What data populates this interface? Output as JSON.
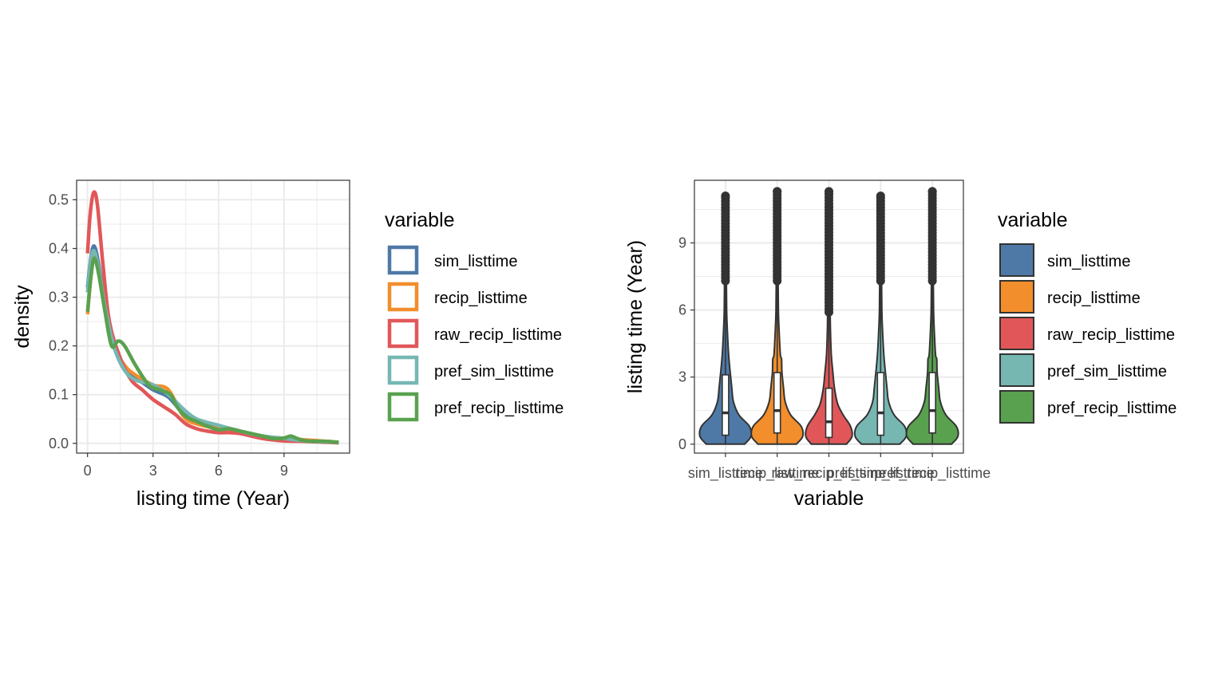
{
  "colors": {
    "sim_listtime": "#4e79a7",
    "recip_listtime": "#f28e2b",
    "raw_recip_listtime": "#e15759",
    "pref_sim_listtime": "#76b7b2",
    "pref_recip_listtime": "#59a14f",
    "outline": "#333333",
    "grid": "#ebebeb",
    "panel_border": "#333333"
  },
  "chart_data": [
    {
      "type": "line",
      "subtype": "density",
      "xlabel": "listing time (Year)",
      "ylabel": "density",
      "xlim": [
        -0.5,
        12
      ],
      "ylim": [
        -0.02,
        0.54
      ],
      "x_ticks": [
        0,
        3,
        6,
        9
      ],
      "x_tick_labels": [
        "0",
        "3",
        "6",
        "9"
      ],
      "y_ticks": [
        0.0,
        0.1,
        0.2,
        0.3,
        0.4,
        0.5
      ],
      "y_tick_labels": [
        "0.0",
        "0.1",
        "0.2",
        "0.3",
        "0.4",
        "0.5"
      ],
      "grid": true,
      "legend": {
        "title": "variable",
        "position": "right",
        "entries": [
          "sim_listtime",
          "recip_listtime",
          "raw_recip_listtime",
          "pref_sim_listtime",
          "pref_recip_listtime"
        ]
      },
      "series": [
        {
          "name": "sim_listtime",
          "points": [
            [
              0.0,
              0.32
            ],
            [
              0.15,
              0.38
            ],
            [
              0.3,
              0.405
            ],
            [
              0.5,
              0.37
            ],
            [
              0.8,
              0.28
            ],
            [
              1.2,
              0.2
            ],
            [
              1.7,
              0.15
            ],
            [
              2.2,
              0.135
            ],
            [
              3.0,
              0.11
            ],
            [
              3.7,
              0.095
            ],
            [
              4.4,
              0.06
            ],
            [
              5.0,
              0.045
            ],
            [
              6.0,
              0.033
            ],
            [
              7.0,
              0.025
            ],
            [
              8.0,
              0.015
            ],
            [
              9.0,
              0.01
            ],
            [
              10.0,
              0.005
            ],
            [
              11.0,
              0.003
            ],
            [
              11.5,
              0.002
            ]
          ]
        },
        {
          "name": "recip_listtime",
          "points": [
            [
              0.0,
              0.265
            ],
            [
              0.15,
              0.34
            ],
            [
              0.3,
              0.385
            ],
            [
              0.5,
              0.36
            ],
            [
              0.8,
              0.28
            ],
            [
              1.2,
              0.2
            ],
            [
              1.7,
              0.16
            ],
            [
              2.2,
              0.14
            ],
            [
              3.0,
              0.12
            ],
            [
              3.7,
              0.11
            ],
            [
              4.4,
              0.055
            ],
            [
              5.0,
              0.04
            ],
            [
              6.0,
              0.03
            ],
            [
              7.0,
              0.022
            ],
            [
              8.0,
              0.012
            ],
            [
              9.0,
              0.01
            ],
            [
              10.0,
              0.007
            ],
            [
              11.0,
              0.004
            ],
            [
              11.5,
              0.002
            ]
          ]
        },
        {
          "name": "raw_recip_listtime",
          "points": [
            [
              0.0,
              0.39
            ],
            [
              0.12,
              0.47
            ],
            [
              0.28,
              0.515
            ],
            [
              0.45,
              0.49
            ],
            [
              0.7,
              0.37
            ],
            [
              1.0,
              0.25
            ],
            [
              1.5,
              0.175
            ],
            [
              2.0,
              0.13
            ],
            [
              2.5,
              0.11
            ],
            [
              3.0,
              0.09
            ],
            [
              3.5,
              0.075
            ],
            [
              4.0,
              0.06
            ],
            [
              4.5,
              0.04
            ],
            [
              5.0,
              0.03
            ],
            [
              5.5,
              0.025
            ],
            [
              6.0,
              0.022
            ],
            [
              6.5,
              0.022
            ],
            [
              7.0,
              0.02
            ],
            [
              8.0,
              0.01
            ],
            [
              9.0,
              0.005
            ],
            [
              10.0,
              0.004
            ],
            [
              11.0,
              0.002
            ],
            [
              11.5,
              0.001
            ]
          ]
        },
        {
          "name": "pref_sim_listtime",
          "points": [
            [
              0.0,
              0.31
            ],
            [
              0.15,
              0.375
            ],
            [
              0.3,
              0.395
            ],
            [
              0.5,
              0.36
            ],
            [
              0.8,
              0.28
            ],
            [
              1.2,
              0.2
            ],
            [
              1.7,
              0.15
            ],
            [
              2.2,
              0.13
            ],
            [
              3.0,
              0.12
            ],
            [
              3.7,
              0.1
            ],
            [
              4.4,
              0.07
            ],
            [
              5.0,
              0.05
            ],
            [
              6.0,
              0.037
            ],
            [
              7.0,
              0.025
            ],
            [
              8.0,
              0.015
            ],
            [
              9.0,
              0.01
            ],
            [
              10.0,
              0.005
            ],
            [
              11.0,
              0.003
            ],
            [
              11.5,
              0.002
            ]
          ]
        },
        {
          "name": "pref_recip_listtime",
          "points": [
            [
              0.0,
              0.27
            ],
            [
              0.15,
              0.34
            ],
            [
              0.3,
              0.38
            ],
            [
              0.5,
              0.35
            ],
            [
              0.8,
              0.27
            ],
            [
              1.1,
              0.2
            ],
            [
              1.4,
              0.21
            ],
            [
              1.7,
              0.2
            ],
            [
              2.2,
              0.16
            ],
            [
              2.8,
              0.12
            ],
            [
              3.3,
              0.11
            ],
            [
              3.8,
              0.1
            ],
            [
              4.1,
              0.075
            ],
            [
              4.5,
              0.055
            ],
            [
              5.0,
              0.045
            ],
            [
              5.5,
              0.035
            ],
            [
              6.0,
              0.028
            ],
            [
              6.5,
              0.03
            ],
            [
              7.0,
              0.025
            ],
            [
              7.5,
              0.02
            ],
            [
              8.0,
              0.015
            ],
            [
              8.5,
              0.01
            ],
            [
              9.0,
              0.011
            ],
            [
              9.3,
              0.015
            ],
            [
              9.6,
              0.01
            ],
            [
              10.0,
              0.005
            ],
            [
              11.0,
              0.004
            ],
            [
              11.5,
              0.002
            ]
          ]
        }
      ]
    },
    {
      "type": "violin",
      "xlabel": "variable",
      "ylabel": "listing time (Year)",
      "ylim": [
        -0.4,
        11.8
      ],
      "y_ticks": [
        0,
        3,
        6,
        9
      ],
      "y_tick_labels": [
        "0",
        "3",
        "6",
        "9"
      ],
      "categories": [
        "sim_listtime",
        "recip_listtime",
        "raw_recip_listtime",
        "pref_sim_listtime",
        "pref_recip_listtime"
      ],
      "grid": true,
      "legend": {
        "title": "variable",
        "position": "right",
        "entries": [
          "sim_listtime",
          "recip_listtime",
          "raw_recip_listtime",
          "pref_sim_listtime",
          "pref_recip_listtime"
        ]
      },
      "series": [
        {
          "name": "sim_listtime",
          "min": 0,
          "q1": 0.4,
          "median": 1.4,
          "q3": 3.1,
          "whisker_high": 7.3,
          "max": 11.1,
          "outlier_start": 7.3
        },
        {
          "name": "recip_listtime",
          "min": 0,
          "q1": 0.5,
          "median": 1.5,
          "q3": 3.2,
          "whisker_high": 7.3,
          "max": 11.3,
          "outlier_start": 7.3
        },
        {
          "name": "raw_recip_listtime",
          "min": 0,
          "q1": 0.3,
          "median": 1.0,
          "q3": 2.5,
          "whisker_high": 5.9,
          "max": 11.3,
          "outlier_start": 5.9
        },
        {
          "name": "pref_sim_listtime",
          "min": 0,
          "q1": 0.4,
          "median": 1.4,
          "q3": 3.2,
          "whisker_high": 7.3,
          "max": 11.1,
          "outlier_start": 7.3
        },
        {
          "name": "pref_recip_listtime",
          "min": 0,
          "q1": 0.5,
          "median": 1.5,
          "q3": 3.2,
          "whisker_high": 7.3,
          "max": 11.3,
          "outlier_start": 7.3
        }
      ]
    }
  ]
}
